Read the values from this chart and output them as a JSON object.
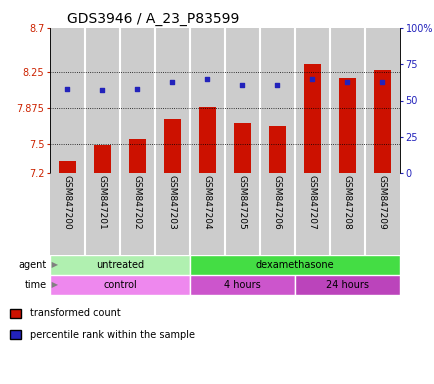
{
  "title": "GDS3946 / A_23_P83599",
  "samples": [
    "GSM847200",
    "GSM847201",
    "GSM847202",
    "GSM847203",
    "GSM847204",
    "GSM847205",
    "GSM847206",
    "GSM847207",
    "GSM847208",
    "GSM847209"
  ],
  "bar_values": [
    7.32,
    7.49,
    7.55,
    7.76,
    7.88,
    7.72,
    7.69,
    8.33,
    8.18,
    8.27
  ],
  "dot_values": [
    58,
    57,
    58,
    63,
    65,
    61,
    61,
    65,
    63,
    63
  ],
  "bar_color": "#cc1100",
  "dot_color": "#2222bb",
  "ylim_left": [
    7.2,
    8.7
  ],
  "ylim_right": [
    0,
    100
  ],
  "yticks_left": [
    7.2,
    7.5,
    7.875,
    8.25,
    8.7
  ],
  "ytick_labels_left": [
    "7.2",
    "7.5",
    "7.875",
    "8.25",
    "8.7"
  ],
  "yticks_right": [
    0,
    25,
    50,
    75,
    100
  ],
  "ytick_labels_right": [
    "0",
    "25",
    "50",
    "75",
    "100%"
  ],
  "hlines": [
    7.5,
    7.875,
    8.25
  ],
  "agent_groups": [
    {
      "label": "untreated",
      "start": 0,
      "end": 4,
      "color": "#b0f0b0"
    },
    {
      "label": "dexamethasone",
      "start": 4,
      "end": 10,
      "color": "#44dd44"
    }
  ],
  "time_groups": [
    {
      "label": "control",
      "start": 0,
      "end": 4,
      "color": "#ee88ee"
    },
    {
      "label": "4 hours",
      "start": 4,
      "end": 7,
      "color": "#cc55cc"
    },
    {
      "label": "24 hours",
      "start": 7,
      "end": 10,
      "color": "#bb44bb"
    }
  ],
  "ylabel_left_color": "#cc2200",
  "ylabel_right_color": "#2222bb",
  "bar_width": 0.5,
  "title_fontsize": 10,
  "tick_fontsize": 7,
  "sample_fontsize": 6.5,
  "row_fontsize": 7,
  "legend_label1": "transformed count",
  "legend_label2": "percentile rank within the sample",
  "col_bg_even": "#cccccc",
  "col_bg_odd": "#cccccc"
}
